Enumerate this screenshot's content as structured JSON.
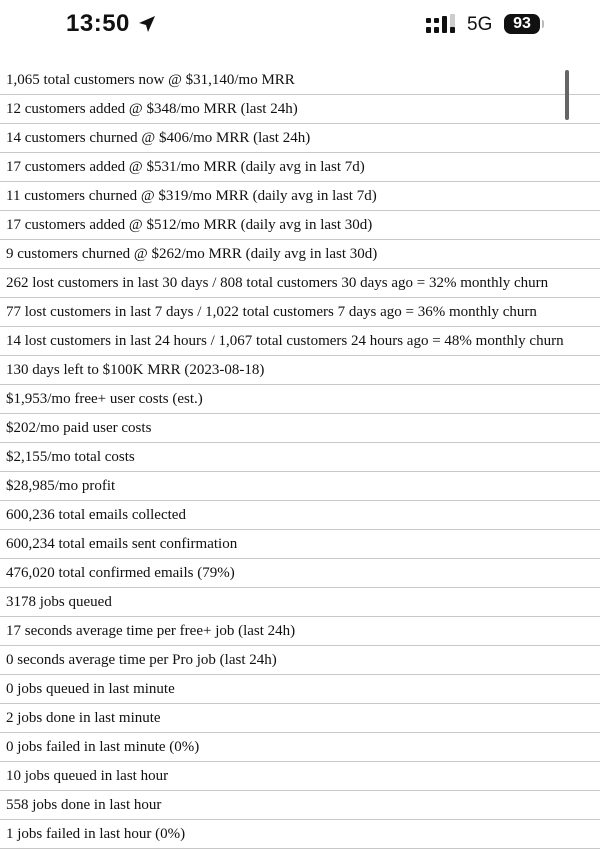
{
  "status_bar": {
    "time": "13:50",
    "network": "5G",
    "battery": "93"
  },
  "rows": [
    "1,065 total customers now @ $31,140/mo MRR",
    "12 customers added @ $348/mo MRR (last 24h)",
    "14 customers churned @ $406/mo MRR (last 24h)",
    "17 customers added @ $531/mo MRR (daily avg in last 7d)",
    "11 customers churned @ $319/mo MRR (daily avg in last 7d)",
    "17 customers added @ $512/mo MRR (daily avg in last 30d)",
    "9 customers churned @ $262/mo MRR (daily avg in last 30d)",
    "262 lost customers in last 30 days / 808 total customers 30 days ago = 32% monthly churn",
    "77 lost customers in last 7 days / 1,022 total customers 7 days ago = 36% monthly churn",
    "14 lost customers in last 24 hours / 1,067 total customers 24 hours ago = 48% monthly churn",
    "130 days left to $100K MRR (2023-08-18)",
    "$1,953/mo free+ user costs (est.)",
    "$202/mo paid user costs",
    "$2,155/mo total costs",
    "$28,985/mo profit",
    "600,236 total emails collected",
    "600,234 total emails sent confirmation",
    "476,020 total confirmed emails (79%)",
    "3178 jobs queued",
    "17 seconds average time per free+ job (last 24h)",
    "0 seconds average time per Pro job (last 24h)",
    "0 jobs queued in last minute",
    "2 jobs done in last minute",
    "0 jobs failed in last minute (0%)",
    "10 jobs queued in last hour",
    "558 jobs done in last hour",
    "1 jobs failed in last hour (0%)"
  ]
}
